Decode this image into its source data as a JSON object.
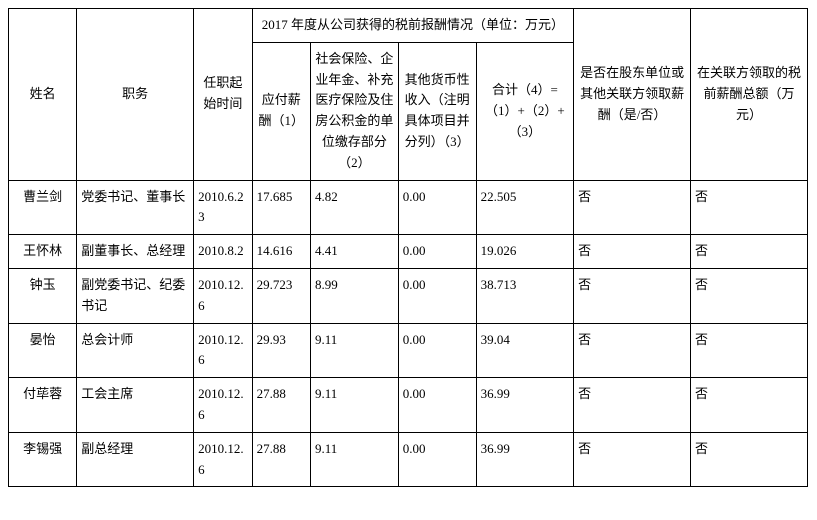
{
  "header": {
    "name": "姓名",
    "position": "职务",
    "start": "任职起始时间",
    "compGroup": "2017 年度从公司获得的税前报酬情况（单位：万元）",
    "salary": "应付薪酬（1）",
    "social": "社会保险、企业年金、补充医疗保险及住房公积金的单位缴存部分（2）",
    "other": "其他货币性收入（注明具体项目并分列）（3）",
    "sum": "合计（4）=（1）+（2）+（3）",
    "shareholder": "是否在股东单位或其他关联方领取薪酬（是/否）",
    "related": "在关联方领取的税前薪酬总额（万元）"
  },
  "rows": [
    {
      "name": "曹兰剑",
      "position": "党委书记、董事长",
      "start": "2010.6.23",
      "salary": "17.685",
      "social": "4.82",
      "other": "0.00",
      "sum": "22.505",
      "shareholder": "否",
      "related": "否"
    },
    {
      "name": "王怀林",
      "position": "副董事长、总经理",
      "start": "2010.8.2",
      "salary": "14.616",
      "social": "4.41",
      "other": "0.00",
      "sum": "19.026",
      "shareholder": "否",
      "related": "否"
    },
    {
      "name": "钟玉",
      "position": "副党委书记、纪委书记",
      "start": "2010.12.6",
      "salary": "29.723",
      "social": "8.99",
      "other": "0.00",
      "sum": "38.713",
      "shareholder": "否",
      "related": "否"
    },
    {
      "name": "晏怡",
      "position": "总会计师",
      "start": "2010.12.6",
      "salary": "29.93",
      "social": "9.11",
      "other": "0.00",
      "sum": "39.04",
      "shareholder": "否",
      "related": "否"
    },
    {
      "name": "付荜蓉",
      "position": "工会主席",
      "start": "2010.12.6",
      "salary": "27.88",
      "social": "9.11",
      "other": "0.00",
      "sum": "36.99",
      "shareholder": "否",
      "related": "否"
    },
    {
      "name": "李锡强",
      "position": "副总经理",
      "start": "2010.12.6",
      "salary": "27.88",
      "social": "9.11",
      "other": "0.00",
      "sum": "36.99",
      "shareholder": "否",
      "related": "否"
    }
  ]
}
